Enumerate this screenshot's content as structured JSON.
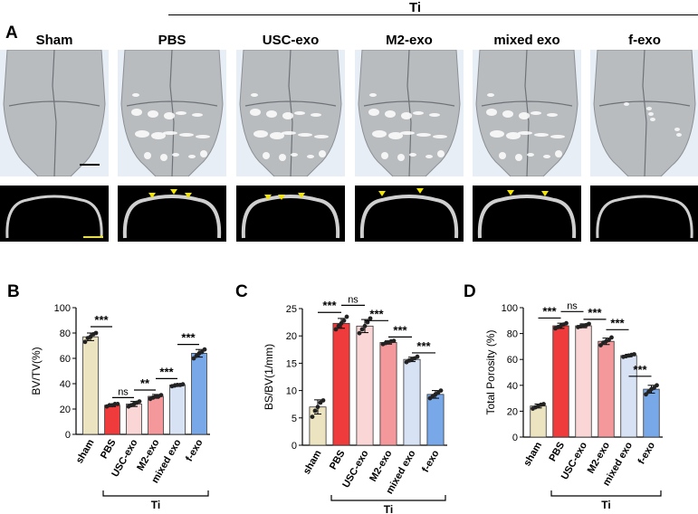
{
  "figure": {
    "panel_a_letter": "A",
    "ti_label": "Ti",
    "groups": [
      "Sham",
      "PBS",
      "USC-exo",
      "M2-exo",
      "mixed exo",
      "f-exo"
    ],
    "colors": {
      "scan_bg": "#e7eef5",
      "skull": "#b9bcbf",
      "ct_bg": "#000000",
      "arrowhead": "#f2e600",
      "scale_bar_scan": "#000000",
      "scale_bar_ct": "#f2e600"
    }
  },
  "chart_data": [
    {
      "panel": "B",
      "type": "bar",
      "ylabel": "BV/TV(%)",
      "ylim": [
        0,
        100
      ],
      "yticks": [
        0,
        20,
        40,
        60,
        80,
        100
      ],
      "categories": [
        "sham",
        "PBS",
        "USC-exo",
        "M2-exo",
        "mixed exo",
        "f-exo"
      ],
      "values": [
        77,
        23,
        24,
        30,
        39,
        64
      ],
      "errors": [
        3,
        1,
        2,
        1.5,
        1,
        3
      ],
      "points": [
        [
          73,
          76,
          77,
          79,
          80
        ],
        [
          22,
          23,
          23,
          24,
          24
        ],
        [
          22,
          23,
          24,
          25,
          26
        ],
        [
          28,
          29,
          30,
          30,
          31
        ],
        [
          38,
          38.5,
          39,
          39,
          39.5
        ],
        [
          60,
          62,
          64,
          65,
          67
        ]
      ],
      "colors": [
        "#ece4c0",
        "#ef3b3b",
        "#fbd6d6",
        "#f4989b",
        "#d7e2f4",
        "#78a8e8"
      ],
      "group_bracket_label": "Ti",
      "group_bracket_range": [
        1,
        5
      ],
      "significance": [
        {
          "from": 0,
          "to": 1,
          "label": "***",
          "y": 85
        },
        {
          "from": 1,
          "to": 2,
          "label": "ns",
          "y": 29
        },
        {
          "from": 2,
          "to": 3,
          "label": "**",
          "y": 35
        },
        {
          "from": 3,
          "to": 4,
          "label": "***",
          "y": 44
        },
        {
          "from": 4,
          "to": 5,
          "label": "***",
          "y": 71
        }
      ]
    },
    {
      "panel": "C",
      "type": "bar",
      "ylabel": "BS/BV(1/mm)",
      "ylim": [
        0,
        25
      ],
      "yticks": [
        0,
        5,
        10,
        15,
        20,
        25
      ],
      "categories": [
        "sham",
        "PBS",
        "USC-exo",
        "M2-exo",
        "mixed exo",
        "f-exo"
      ],
      "values": [
        7,
        22.3,
        21.8,
        18.8,
        15.7,
        9.3
      ],
      "errors": [
        1.3,
        0.9,
        1.2,
        0.3,
        0.4,
        0.7
      ],
      "points": [
        [
          5.2,
          6.3,
          7,
          7.8,
          8.2
        ],
        [
          21.2,
          21.8,
          22.3,
          22.8,
          23.5
        ],
        [
          20.5,
          21.2,
          21.8,
          22.5,
          23.2
        ],
        [
          18.5,
          18.7,
          18.8,
          19,
          19.1
        ],
        [
          15.2,
          15.5,
          15.7,
          15.9,
          16.2
        ],
        [
          8.6,
          9,
          9.3,
          9.6,
          10
        ]
      ],
      "colors": [
        "#ece4c0",
        "#ef3b3b",
        "#fbd6d6",
        "#f4989b",
        "#d7e2f4",
        "#78a8e8"
      ],
      "group_bracket_label": "Ti",
      "group_bracket_range": [
        1,
        5
      ],
      "significance": [
        {
          "from": 0,
          "to": 1,
          "label": "***",
          "y": 24.3
        },
        {
          "from": 1,
          "to": 2,
          "label": "ns",
          "y": 25.6
        },
        {
          "from": 2,
          "to": 3,
          "label": "***",
          "y": 22.8
        },
        {
          "from": 3,
          "to": 4,
          "label": "***",
          "y": 19.8
        },
        {
          "from": 4,
          "to": 5,
          "label": "***",
          "y": 16.9
        }
      ]
    },
    {
      "panel": "D",
      "type": "bar",
      "ylabel": "Total Porosity (%)",
      "ylim": [
        0,
        100
      ],
      "yticks": [
        0,
        20,
        40,
        60,
        80,
        100
      ],
      "categories": [
        "sham",
        "PBS",
        "USC-exo",
        "M2-exo",
        "mixed exo",
        "f-exo"
      ],
      "values": [
        24,
        86,
        86,
        74,
        63,
        37
      ],
      "errors": [
        1.5,
        2,
        1.5,
        2.5,
        1,
        3
      ],
      "points": [
        [
          22,
          23,
          24,
          25,
          25.5
        ],
        [
          84,
          85,
          86,
          87,
          88
        ],
        [
          85,
          85.5,
          86,
          86.5,
          87.5
        ],
        [
          71,
          73,
          74,
          75,
          77
        ],
        [
          62,
          62.5,
          63,
          63.5,
          64
        ],
        [
          33,
          35,
          37,
          38,
          40
        ]
      ],
      "colors": [
        "#ece4c0",
        "#ef3b3b",
        "#fbd6d6",
        "#f4989b",
        "#d7e2f4",
        "#78a8e8"
      ],
      "group_bracket_label": "Ti",
      "group_bracket_range": [
        1,
        5
      ],
      "significance": [
        {
          "from": 0,
          "to": 1,
          "label": "***",
          "y": 92
        },
        {
          "from": 1,
          "to": 2,
          "label": "ns",
          "y": 97
        },
        {
          "from": 2,
          "to": 3,
          "label": "***",
          "y": 91
        },
        {
          "from": 3,
          "to": 4,
          "label": "***",
          "y": 83
        },
        {
          "from": 4,
          "to": 5,
          "label": "***",
          "y": 47
        }
      ]
    }
  ]
}
